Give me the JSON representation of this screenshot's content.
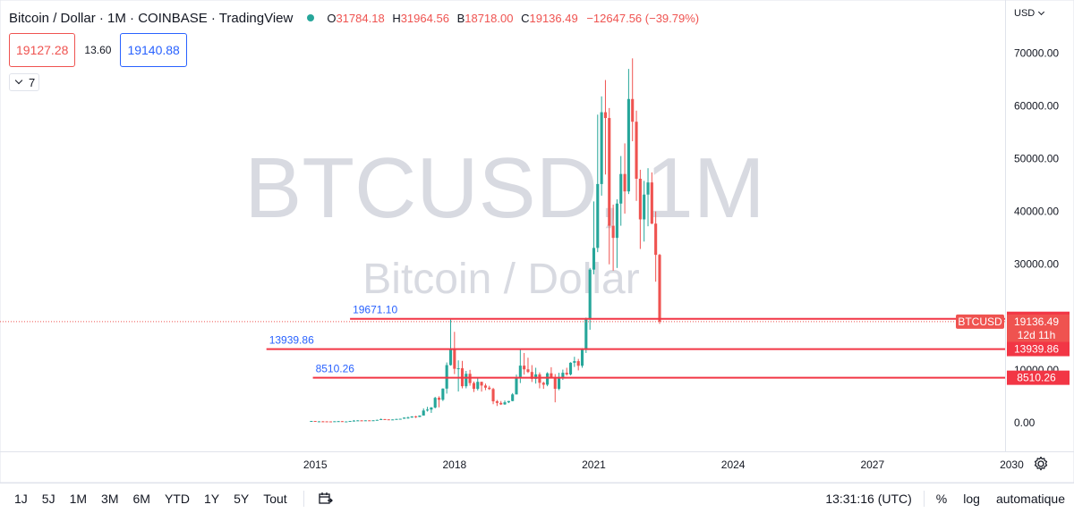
{
  "legend": {
    "title": "Bitcoin / Dollar · 1M · COINBASE · TradingView",
    "open_label": "O",
    "open": "31784.18",
    "high_label": "H",
    "high": "31964.56",
    "low_label": "B",
    "low": "18718.00",
    "close_label": "C",
    "close": "19136.49",
    "change": "−12647.56 (−39.79%)"
  },
  "trade": {
    "sell_price": "19127.28",
    "spread": "13.60",
    "buy_price": "19140.88"
  },
  "indicators_toggle": {
    "count": "7"
  },
  "currency": "USD",
  "watermark": {
    "symbol": "BTCUSD, 1M",
    "name": "Bitcoin / Dollar"
  },
  "colors": {
    "up": "#26a69a",
    "down": "#ef5350",
    "hline": "#f23645",
    "accent": "#2962ff",
    "watermark": "#d1d4dc"
  },
  "chart_data": {
    "type": "candlestick",
    "symbol": "BTCUSD",
    "interval": "1M",
    "y_axis": {
      "ticks": [
        "70000.00",
        "60000.00",
        "50000.00",
        "40000.00",
        "30000.00",
        "10000.00",
        "0.00"
      ],
      "ylim": [
        -1200,
        73200
      ],
      "scale": "linear"
    },
    "x_axis": {
      "ticks": [
        "2015",
        "2018",
        "2021",
        "2024",
        "2027",
        "2030"
      ]
    },
    "x_range": [
      2013.0,
      2033.0
    ],
    "horizontal_lines": [
      {
        "label": "19671.10",
        "value": 19671.1,
        "start_x": 2015.75
      },
      {
        "label": "13939.86",
        "value": 13939.86,
        "start_x": 2013.95
      },
      {
        "label": "8510.26",
        "value": 8510.26,
        "start_x": 2014.95
      }
    ],
    "price_tags": [
      {
        "text": "19671.10",
        "value": 19671.1
      },
      {
        "symbol": "BTCUSD",
        "price": "19136.49",
        "countdown": "12d 11h",
        "value": 19136.49
      },
      {
        "text": "13939.86",
        "value": 13939.86
      },
      {
        "text": "8510.26",
        "value": 8510.26
      }
    ],
    "candles": [
      {
        "t": 2014.917,
        "o": 300,
        "h": 330,
        "l": 250,
        "c": 320
      },
      {
        "t": 2015.0,
        "o": 320,
        "h": 320,
        "l": 170,
        "c": 220
      },
      {
        "t": 2015.083,
        "o": 220,
        "h": 265,
        "l": 200,
        "c": 250
      },
      {
        "t": 2015.167,
        "o": 250,
        "h": 300,
        "l": 240,
        "c": 245
      },
      {
        "t": 2015.25,
        "o": 245,
        "h": 260,
        "l": 215,
        "c": 235
      },
      {
        "t": 2015.333,
        "o": 235,
        "h": 245,
        "l": 225,
        "c": 230
      },
      {
        "t": 2015.417,
        "o": 230,
        "h": 265,
        "l": 220,
        "c": 265
      },
      {
        "t": 2015.5,
        "o": 265,
        "h": 320,
        "l": 255,
        "c": 285
      },
      {
        "t": 2015.583,
        "o": 285,
        "h": 290,
        "l": 200,
        "c": 230
      },
      {
        "t": 2015.667,
        "o": 230,
        "h": 245,
        "l": 225,
        "c": 235
      },
      {
        "t": 2015.75,
        "o": 235,
        "h": 330,
        "l": 235,
        "c": 315
      },
      {
        "t": 2015.833,
        "o": 315,
        "h": 500,
        "l": 310,
        "c": 380
      },
      {
        "t": 2015.917,
        "o": 380,
        "h": 470,
        "l": 340,
        "c": 430
      },
      {
        "t": 2016.0,
        "o": 430,
        "h": 460,
        "l": 350,
        "c": 370
      },
      {
        "t": 2016.083,
        "o": 370,
        "h": 440,
        "l": 365,
        "c": 440
      },
      {
        "t": 2016.167,
        "o": 440,
        "h": 445,
        "l": 400,
        "c": 415
      },
      {
        "t": 2016.25,
        "o": 415,
        "h": 465,
        "l": 410,
        "c": 450
      },
      {
        "t": 2016.333,
        "o": 450,
        "h": 550,
        "l": 440,
        "c": 530
      },
      {
        "t": 2016.417,
        "o": 530,
        "h": 780,
        "l": 530,
        "c": 670
      },
      {
        "t": 2016.5,
        "o": 670,
        "h": 700,
        "l": 610,
        "c": 625
      },
      {
        "t": 2016.583,
        "o": 625,
        "h": 630,
        "l": 510,
        "c": 575
      },
      {
        "t": 2016.667,
        "o": 575,
        "h": 620,
        "l": 570,
        "c": 610
      },
      {
        "t": 2016.75,
        "o": 610,
        "h": 720,
        "l": 605,
        "c": 700
      },
      {
        "t": 2016.833,
        "o": 700,
        "h": 750,
        "l": 680,
        "c": 740
      },
      {
        "t": 2016.917,
        "o": 740,
        "h": 970,
        "l": 740,
        "c": 960
      },
      {
        "t": 2017.0,
        "o": 960,
        "h": 1150,
        "l": 750,
        "c": 965
      },
      {
        "t": 2017.083,
        "o": 965,
        "h": 1200,
        "l": 940,
        "c": 1190
      },
      {
        "t": 2017.167,
        "o": 1190,
        "h": 1300,
        "l": 890,
        "c": 1080
      },
      {
        "t": 2017.25,
        "o": 1080,
        "h": 1350,
        "l": 1060,
        "c": 1350
      },
      {
        "t": 2017.333,
        "o": 1350,
        "h": 2700,
        "l": 1350,
        "c": 2300
      },
      {
        "t": 2017.417,
        "o": 2300,
        "h": 3000,
        "l": 2100,
        "c": 2480
      },
      {
        "t": 2017.5,
        "o": 2480,
        "h": 2950,
        "l": 1850,
        "c": 2870
      },
      {
        "t": 2017.583,
        "o": 2870,
        "h": 4900,
        "l": 2700,
        "c": 4700
      },
      {
        "t": 2017.667,
        "o": 4700,
        "h": 5000,
        "l": 2900,
        "c": 4340
      },
      {
        "t": 2017.75,
        "o": 4340,
        "h": 6500,
        "l": 4100,
        "c": 6450
      },
      {
        "t": 2017.833,
        "o": 6450,
        "h": 11400,
        "l": 5500,
        "c": 10900
      },
      {
        "t": 2017.917,
        "o": 10900,
        "h": 19700,
        "l": 10800,
        "c": 13900
      },
      {
        "t": 2018.0,
        "o": 13900,
        "h": 17200,
        "l": 9200,
        "c": 10200
      },
      {
        "t": 2018.083,
        "o": 10200,
        "h": 11800,
        "l": 5900,
        "c": 10300
      },
      {
        "t": 2018.167,
        "o": 10300,
        "h": 11700,
        "l": 6500,
        "c": 6900
      },
      {
        "t": 2018.25,
        "o": 6900,
        "h": 9800,
        "l": 6500,
        "c": 9250
      },
      {
        "t": 2018.333,
        "o": 9250,
        "h": 10000,
        "l": 7000,
        "c": 7500
      },
      {
        "t": 2018.417,
        "o": 7500,
        "h": 7800,
        "l": 5800,
        "c": 6400
      },
      {
        "t": 2018.5,
        "o": 6400,
        "h": 8500,
        "l": 6100,
        "c": 7730
      },
      {
        "t": 2018.583,
        "o": 7730,
        "h": 7760,
        "l": 5880,
        "c": 7030
      },
      {
        "t": 2018.667,
        "o": 7030,
        "h": 7400,
        "l": 6150,
        "c": 6630
      },
      {
        "t": 2018.75,
        "o": 6630,
        "h": 6980,
        "l": 6200,
        "c": 6370
      },
      {
        "t": 2018.833,
        "o": 6370,
        "h": 6600,
        "l": 3500,
        "c": 4040
      },
      {
        "t": 2018.917,
        "o": 4040,
        "h": 4300,
        "l": 3150,
        "c": 3740
      },
      {
        "t": 2019.0,
        "o": 3740,
        "h": 4100,
        "l": 3350,
        "c": 3460
      },
      {
        "t": 2019.083,
        "o": 3460,
        "h": 4200,
        "l": 3380,
        "c": 3850
      },
      {
        "t": 2019.167,
        "o": 3850,
        "h": 4120,
        "l": 3700,
        "c": 4100
      },
      {
        "t": 2019.25,
        "o": 4100,
        "h": 5600,
        "l": 4050,
        "c": 5350
      },
      {
        "t": 2019.333,
        "o": 5350,
        "h": 9100,
        "l": 5350,
        "c": 8550
      },
      {
        "t": 2019.417,
        "o": 8550,
        "h": 13900,
        "l": 7500,
        "c": 10800
      },
      {
        "t": 2019.5,
        "o": 10800,
        "h": 13200,
        "l": 9100,
        "c": 10100
      },
      {
        "t": 2019.583,
        "o": 10100,
        "h": 12300,
        "l": 9400,
        "c": 9600
      },
      {
        "t": 2019.667,
        "o": 9600,
        "h": 10900,
        "l": 7700,
        "c": 8300
      },
      {
        "t": 2019.75,
        "o": 8300,
        "h": 10400,
        "l": 7400,
        "c": 9150
      },
      {
        "t": 2019.833,
        "o": 9150,
        "h": 9520,
        "l": 6500,
        "c": 7550
      },
      {
        "t": 2019.917,
        "o": 7550,
        "h": 7750,
        "l": 6400,
        "c": 7190
      },
      {
        "t": 2020.0,
        "o": 7190,
        "h": 9550,
        "l": 6900,
        "c": 9350
      },
      {
        "t": 2020.083,
        "o": 9350,
        "h": 10500,
        "l": 8450,
        "c": 8530
      },
      {
        "t": 2020.167,
        "o": 8530,
        "h": 9200,
        "l": 3850,
        "c": 6410
      },
      {
        "t": 2020.25,
        "o": 6410,
        "h": 9450,
        "l": 6150,
        "c": 8630
      },
      {
        "t": 2020.333,
        "o": 8630,
        "h": 10050,
        "l": 8100,
        "c": 9450
      },
      {
        "t": 2020.417,
        "o": 9450,
        "h": 10400,
        "l": 8900,
        "c": 9140
      },
      {
        "t": 2020.5,
        "o": 9140,
        "h": 11450,
        "l": 8950,
        "c": 11350
      },
      {
        "t": 2020.583,
        "o": 11350,
        "h": 12480,
        "l": 10550,
        "c": 11650
      },
      {
        "t": 2020.667,
        "o": 11650,
        "h": 12080,
        "l": 9900,
        "c": 10780
      },
      {
        "t": 2020.75,
        "o": 10780,
        "h": 14100,
        "l": 10400,
        "c": 13800
      },
      {
        "t": 2020.833,
        "o": 13800,
        "h": 19900,
        "l": 13200,
        "c": 19700
      },
      {
        "t": 2020.917,
        "o": 19700,
        "h": 29300,
        "l": 17600,
        "c": 28990
      },
      {
        "t": 2021.0,
        "o": 28990,
        "h": 41900,
        "l": 28100,
        "c": 33100
      },
      {
        "t": 2021.083,
        "o": 33100,
        "h": 58350,
        "l": 32300,
        "c": 45200
      },
      {
        "t": 2021.167,
        "o": 45200,
        "h": 61800,
        "l": 43000,
        "c": 58800
      },
      {
        "t": 2021.25,
        "o": 58800,
        "h": 64900,
        "l": 47000,
        "c": 57700
      },
      {
        "t": 2021.333,
        "o": 57700,
        "h": 59600,
        "l": 30000,
        "c": 37300
      },
      {
        "t": 2021.417,
        "o": 37300,
        "h": 41300,
        "l": 28800,
        "c": 35000
      },
      {
        "t": 2021.5,
        "o": 35000,
        "h": 42300,
        "l": 29300,
        "c": 41500
      },
      {
        "t": 2021.583,
        "o": 41500,
        "h": 50500,
        "l": 37300,
        "c": 47100
      },
      {
        "t": 2021.667,
        "o": 47100,
        "h": 52900,
        "l": 39600,
        "c": 43800
      },
      {
        "t": 2021.75,
        "o": 43800,
        "h": 67000,
        "l": 43300,
        "c": 61300
      },
      {
        "t": 2021.833,
        "o": 61300,
        "h": 69000,
        "l": 53300,
        "c": 57000
      },
      {
        "t": 2021.917,
        "o": 57000,
        "h": 59100,
        "l": 42000,
        "c": 46200
      },
      {
        "t": 2022.0,
        "o": 46200,
        "h": 47900,
        "l": 32900,
        "c": 38500
      },
      {
        "t": 2022.083,
        "o": 38500,
        "h": 45800,
        "l": 34300,
        "c": 43200
      },
      {
        "t": 2022.167,
        "o": 43200,
        "h": 48200,
        "l": 37200,
        "c": 45500
      },
      {
        "t": 2022.25,
        "o": 45500,
        "h": 47400,
        "l": 37600,
        "c": 37700
      },
      {
        "t": 2022.333,
        "o": 37700,
        "h": 40000,
        "l": 26700,
        "c": 31784
      },
      {
        "t": 2022.417,
        "o": 31784,
        "h": 31964,
        "l": 18718,
        "c": 19136
      }
    ]
  },
  "bottom_bar": {
    "ranges": [
      "1J",
      "5J",
      "1M",
      "3M",
      "6M",
      "YTD",
      "1Y",
      "5Y",
      "Tout"
    ],
    "clock": "13:31:16 (UTC)",
    "percent_label": "%",
    "log_label": "log",
    "auto_label": "automatique"
  }
}
